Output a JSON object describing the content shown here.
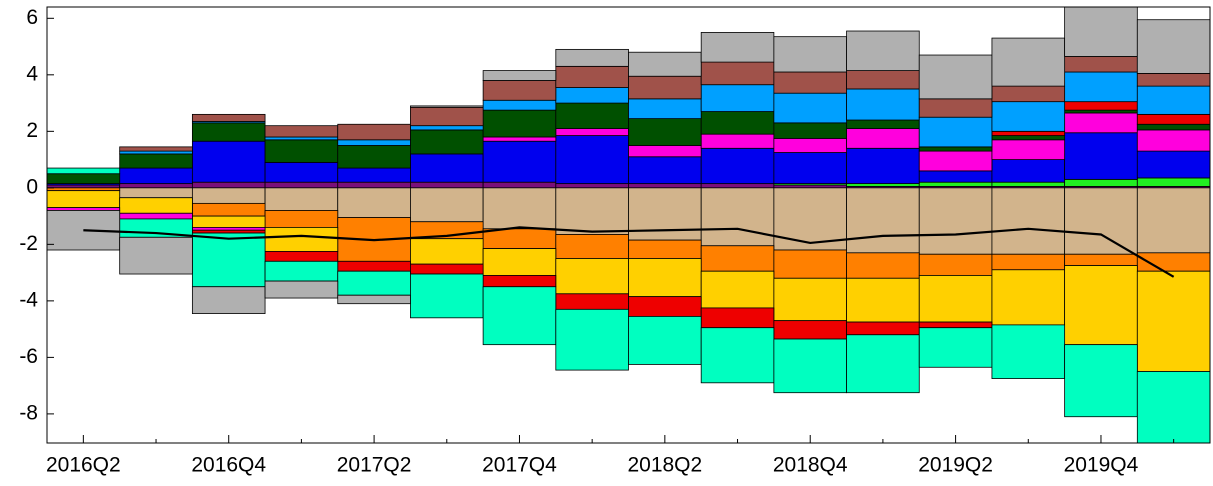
{
  "chart_data": {
    "type": "bar",
    "stacked": true,
    "categories": [
      "2016Q2",
      null,
      "2016Q4",
      null,
      "2017Q2",
      null,
      "2017Q4",
      null,
      "2018Q2",
      null,
      "2018Q4",
      null,
      "2019Q2",
      null,
      "2019Q4",
      null
    ],
    "ylim": [
      -9.03,
      6.4
    ],
    "yticks": [
      -8,
      -6,
      -4,
      -2,
      0,
      2,
      4,
      6
    ],
    "series": [
      {
        "color": "#7a0f7a",
        "values": [
          0.1,
          0.15,
          0.2,
          0.2,
          0.2,
          0.2,
          0.2,
          0.15,
          0.15,
          0.15,
          0.1,
          0.05,
          0.05,
          0.05,
          0.05,
          0.05
        ]
      },
      {
        "color": "#22ee22",
        "values": [
          0,
          0,
          0,
          0,
          0,
          0,
          0,
          0,
          0,
          0,
          0.05,
          0.1,
          0.15,
          0.15,
          0.25,
          0.3
        ]
      },
      {
        "color": "#0000ee",
        "values": [
          0.05,
          0.55,
          1.45,
          0.7,
          0.5,
          1.0,
          1.45,
          1.7,
          0.95,
          1.25,
          1.1,
          1.25,
          0.4,
          0.8,
          1.65,
          0.95
        ]
      },
      {
        "color": "#ff00dd",
        "values": [
          0,
          0,
          0,
          0,
          0,
          0,
          0.15,
          0.25,
          0.4,
          0.5,
          0.5,
          0.7,
          0.7,
          0.7,
          0.7,
          0.75
        ]
      },
      {
        "color": "#005000",
        "values": [
          0.35,
          0.5,
          0.65,
          0.8,
          0.8,
          0.85,
          0.95,
          0.9,
          0.95,
          0.8,
          0.55,
          0.3,
          0.15,
          0.15,
          0.1,
          0.2
        ]
      },
      {
        "color": "#ee0000",
        "values": [
          0,
          0,
          0,
          0,
          0,
          0,
          0,
          0,
          0,
          0,
          0,
          0,
          0,
          0.15,
          0.3,
          0.35
        ]
      },
      {
        "color": "#00a0ff",
        "values": [
          0,
          0.1,
          0.05,
          0.1,
          0.2,
          0.15,
          0.35,
          0.55,
          0.7,
          0.95,
          1.05,
          1.1,
          1.05,
          1.05,
          1.05,
          1.0
        ]
      },
      {
        "color": "#a0524a",
        "values": [
          0,
          0.15,
          0.25,
          0.4,
          0.55,
          0.65,
          0.7,
          0.75,
          0.8,
          0.8,
          0.75,
          0.65,
          0.65,
          0.55,
          0.55,
          0.45
        ]
      },
      {
        "color": "#b0b0b0",
        "values": [
          0,
          0,
          0,
          0,
          0,
          0.05,
          0.35,
          0.6,
          0.85,
          1.05,
          1.25,
          1.4,
          1.55,
          1.7,
          1.8,
          1.9
        ]
      },
      {
        "color": "#00ffc0",
        "values": [
          0.2,
          0,
          0,
          0,
          0,
          0,
          0,
          0,
          0,
          0,
          0,
          0,
          0,
          0,
          0,
          0
        ]
      },
      {
        "color": "#d2b48c",
        "values": [
          0,
          -0.35,
          -0.55,
          -0.8,
          -1.05,
          -1.2,
          -1.45,
          -1.65,
          -1.85,
          -2.05,
          -2.2,
          -2.3,
          -2.35,
          -2.35,
          -2.35,
          -2.3
        ]
      },
      {
        "color": "#ff8000",
        "values": [
          -0.1,
          0,
          -0.45,
          -0.6,
          -1.55,
          -0.6,
          -0.7,
          -0.85,
          -0.65,
          -0.9,
          -1.0,
          -0.9,
          -0.75,
          -0.55,
          -0.4,
          -0.65
        ]
      },
      {
        "color": "#ffd000",
        "values": [
          -0.6,
          -0.55,
          -0.4,
          -0.85,
          0,
          -0.9,
          -0.95,
          -1.25,
          -1.35,
          -1.3,
          -1.5,
          -1.55,
          -1.65,
          -1.95,
          -2.8,
          -3.55
        ]
      },
      {
        "color": "#ff00dd",
        "values": [
          -0.1,
          -0.2,
          -0.1,
          0,
          0,
          0,
          0,
          0,
          0,
          0,
          0,
          0,
          0,
          0,
          0,
          0
        ]
      },
      {
        "color": "#ee0000",
        "values": [
          0,
          0,
          -0.1,
          -0.35,
          -0.35,
          -0.35,
          -0.4,
          -0.55,
          -0.7,
          -0.7,
          -0.65,
          -0.45,
          -0.2,
          0,
          0,
          0
        ]
      },
      {
        "color": "#00ffc0",
        "values": [
          0,
          -0.65,
          -1.9,
          -0.7,
          -0.85,
          -1.55,
          -2.05,
          -2.15,
          -1.7,
          -1.95,
          -1.9,
          -2.05,
          -1.4,
          -1.9,
          -2.55,
          -2.6
        ]
      },
      {
        "color": "#b0b0b0",
        "values": [
          -1.4,
          -1.3,
          -0.95,
          -0.6,
          -0.3,
          0,
          0,
          0,
          0,
          0,
          0,
          0,
          0,
          0,
          0,
          0
        ]
      },
      {
        "type": "line",
        "color": "#000000",
        "values": [
          -1.5,
          -1.6,
          -1.8,
          -1.7,
          -1.85,
          -1.7,
          -1.4,
          -1.55,
          -1.5,
          -1.45,
          -1.95,
          -1.7,
          -1.65,
          -1.45,
          -1.65,
          -3.15
        ]
      }
    ]
  }
}
